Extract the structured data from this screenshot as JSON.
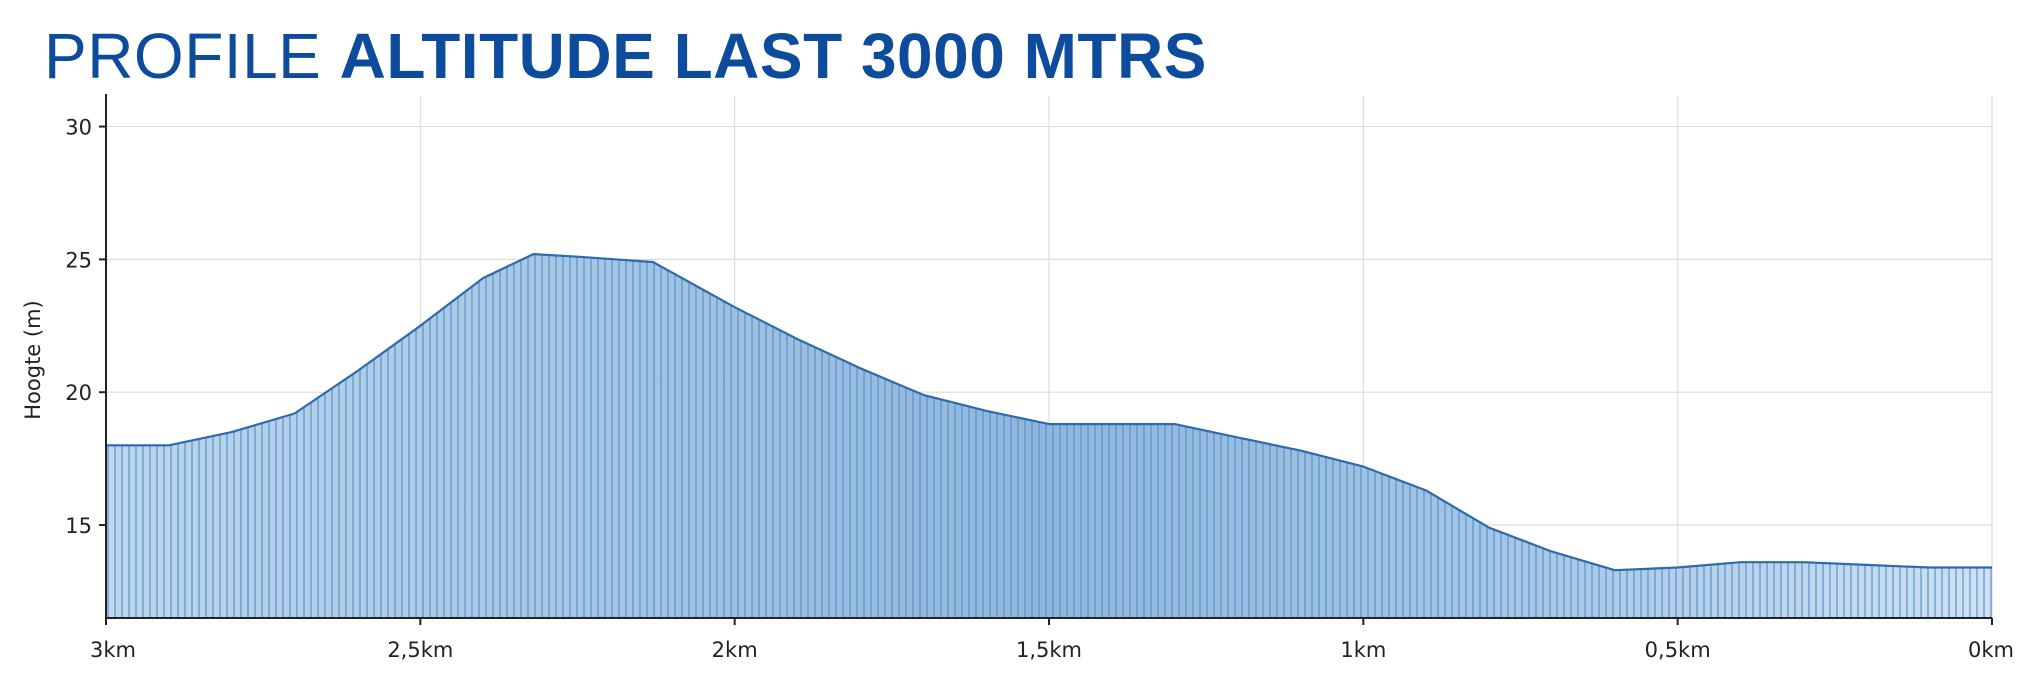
{
  "header": {
    "title_light": "PROFILE",
    "title_bold": "ALTITUDE LAST 3000 MTRS"
  },
  "chart_data": {
    "type": "area",
    "title": "PROFILE ALTITUDE LAST 3000 MTRS",
    "xlabel": "",
    "ylabel": "Hoogte (m)",
    "xlim": [
      3,
      0
    ],
    "ylim": [
      11.5,
      31
    ],
    "x_ticks": [
      {
        "value": 3,
        "label": "3km"
      },
      {
        "value": 2.5,
        "label": "2,5km"
      },
      {
        "value": 2,
        "label": "2km"
      },
      {
        "value": 1.5,
        "label": "1,5km"
      },
      {
        "value": 1,
        "label": "1km"
      },
      {
        "value": 0.5,
        "label": "0,5km"
      },
      {
        "value": 0,
        "label": "0km"
      }
    ],
    "y_ticks": [
      {
        "value": 15,
        "label": "15"
      },
      {
        "value": 20,
        "label": "20"
      },
      {
        "value": 25,
        "label": "25"
      },
      {
        "value": 30,
        "label": "30"
      }
    ],
    "grid": true,
    "series": [
      {
        "x": [
          3.0,
          2.9,
          2.8,
          2.7,
          2.6,
          2.5,
          2.4,
          2.32,
          2.25,
          2.13,
          2.0,
          1.9,
          1.8,
          1.7,
          1.6,
          1.5,
          1.4,
          1.3,
          1.2,
          1.1,
          1.0,
          0.9,
          0.8,
          0.7,
          0.6,
          0.5,
          0.4,
          0.3,
          0.2,
          0.1,
          0.0
        ],
        "y": [
          18.0,
          18.0,
          18.5,
          19.2,
          20.8,
          22.5,
          24.3,
          25.2,
          25.1,
          24.9,
          23.2,
          22.0,
          20.9,
          19.9,
          19.3,
          18.8,
          18.8,
          18.8,
          18.3,
          17.8,
          17.2,
          16.3,
          14.9,
          14.0,
          13.3,
          13.4,
          13.6,
          13.6,
          13.5,
          13.4,
          13.4
        ]
      }
    ],
    "colors": {
      "fill_light": "#bcd6ed",
      "fill_dark": "#8fb6dc",
      "hatch": "#5a93c8",
      "line": "#2f6aab",
      "grid": "#dddddd",
      "axis": "#222222",
      "title": "#0d4c9c"
    }
  }
}
